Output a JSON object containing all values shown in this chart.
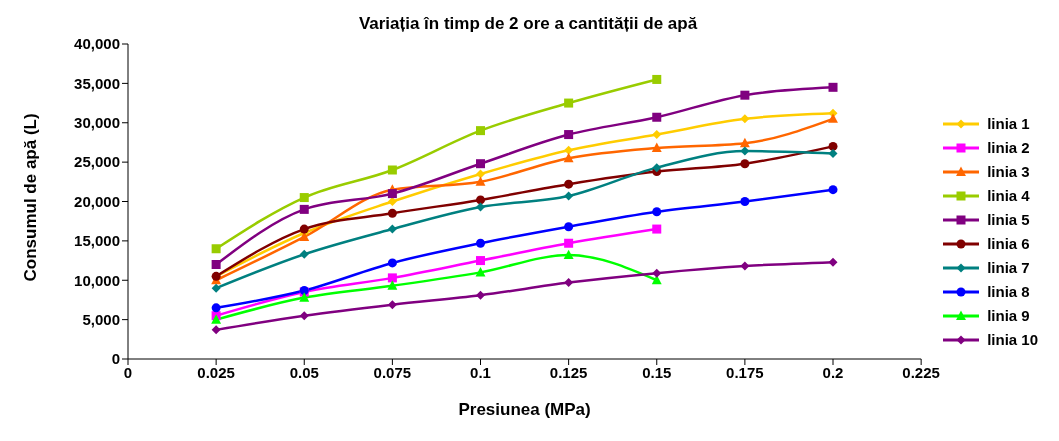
{
  "chart_data": {
    "type": "line",
    "title": "Variația în timp de 2 ore a cantității de apă",
    "xlabel": "Presiunea (MPa)",
    "ylabel": "Consumul de apă (L)",
    "x": [
      0.025,
      0.05,
      0.075,
      0.1,
      0.125,
      0.15,
      0.175,
      0.2
    ],
    "xlim": [
      0,
      0.225
    ],
    "xticks": [
      0,
      0.025,
      0.05,
      0.075,
      0.1,
      0.125,
      0.15,
      0.175,
      0.2,
      0.225
    ],
    "ylim": [
      0,
      40000
    ],
    "yticks": [
      0,
      {
        "value": 5000,
        "label": "5,000"
      },
      {
        "value": 10000,
        "label": "10,000"
      },
      {
        "value": 15000,
        "label": "15,000"
      },
      {
        "value": 20000,
        "label": "20,000"
      },
      {
        "value": 25000,
        "label": "25,000"
      },
      {
        "value": 30000,
        "label": "30,000"
      },
      {
        "value": 35000,
        "label": "35,000"
      },
      {
        "value": 40000,
        "label": "40,000"
      }
    ],
    "grid": false,
    "legend": "right",
    "line_style": "solid",
    "series": [
      {
        "name": "linia 1",
        "color": "#ffcc00",
        "marker": "diamond",
        "values": [
          10500,
          16000,
          20000,
          23500,
          26500,
          28500,
          30500,
          31200
        ]
      },
      {
        "name": "linia 2",
        "color": "#ff00ff",
        "marker": "square",
        "values": [
          5500,
          8500,
          10300,
          12500,
          14700,
          16500,
          null,
          null
        ]
      },
      {
        "name": "linia 3",
        "color": "#ff6600",
        "marker": "triangle",
        "values": [
          10000,
          15500,
          21500,
          22500,
          25500,
          26800,
          27400,
          30500
        ]
      },
      {
        "name": "linia 4",
        "color": "#99cc00",
        "marker": "square",
        "values": [
          14000,
          20500,
          24000,
          29000,
          32500,
          35500,
          null,
          null
        ]
      },
      {
        "name": "linia 5",
        "color": "#800080",
        "marker": "square",
        "values": [
          12000,
          19000,
          21000,
          24800,
          28500,
          30700,
          33500,
          34500
        ]
      },
      {
        "name": "linia 6",
        "color": "#800000",
        "marker": "circle",
        "values": [
          10500,
          16500,
          18500,
          20200,
          22200,
          23800,
          24800,
          27000
        ]
      },
      {
        "name": "linia 7",
        "color": "#008080",
        "marker": "diamond",
        "values": [
          9000,
          13300,
          16500,
          19300,
          20700,
          24300,
          26400,
          26100
        ]
      },
      {
        "name": "linia 8",
        "color": "#0000ff",
        "marker": "circle",
        "values": [
          6500,
          8700,
          12200,
          14700,
          16800,
          18700,
          20000,
          21500
        ]
      },
      {
        "name": "linia 9",
        "color": "#00ff00",
        "marker": "triangle",
        "values": [
          5000,
          7800,
          9300,
          11000,
          13200,
          10000,
          null,
          null
        ]
      },
      {
        "name": "linia 10",
        "color": "#800080",
        "marker": "diamond",
        "values": [
          3700,
          5500,
          6900,
          8100,
          9700,
          10900,
          11800,
          12300
        ]
      }
    ]
  }
}
